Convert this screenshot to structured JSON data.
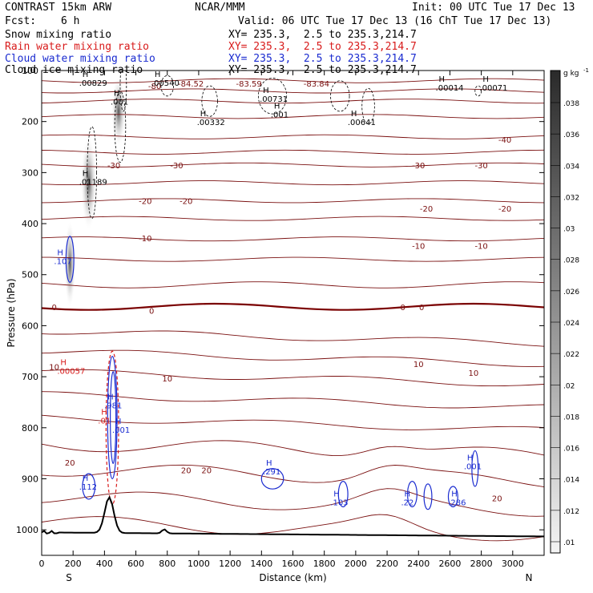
{
  "header": {
    "model": "CONTRAST 15km ARW",
    "org": "NCAR/MMM",
    "init": "Init: 00 UTC Tue 17 Dec 13",
    "fcst_label": "Fcst:",
    "fcst_value": "6 h",
    "valid": "Valid: 06 UTC Tue 17 Dec 13 (16 ChT Tue 17 Dec 13)"
  },
  "fields": [
    {
      "name": "Snow mixing ratio",
      "xy": "XY= 235.3,  2.5 to 235.3,214.7",
      "color": "#000000"
    },
    {
      "name": "Rain water mixing ratio",
      "xy": "XY= 235.3,  2.5 to 235.3,214.7",
      "color": "#d81b1b"
    },
    {
      "name": "Cloud water mixing ratio",
      "xy": "XY= 235.3,  2.5 to 235.3,214.7",
      "color": "#1a2bd0"
    },
    {
      "name": "Cloud ice mixing ratio",
      "xy": "XY= 235.3,  2.5 to 235.3,214.7",
      "color": "#000000"
    }
  ],
  "chart_data": {
    "type": "contour-cross-section",
    "xlabel": "Distance (km)",
    "ylabel": "Pressure (hPa)",
    "xlim": [
      0,
      3200
    ],
    "ylim": [
      1050,
      100
    ],
    "x_ticks": [
      "0",
      "200",
      "400",
      "600",
      "800",
      "1000",
      "1200",
      "1400",
      "1600",
      "1800",
      "2000",
      "2200",
      "2400",
      "2600",
      "2800",
      "3000"
    ],
    "y_ticks": [
      "100",
      "200",
      "300",
      "400",
      "500",
      "600",
      "700",
      "800",
      "900",
      "1000"
    ],
    "x_end_left": "S",
    "x_end_right": "N",
    "colorbar": {
      "unit": "g kg",
      "unit_exp": "-1",
      "labels": [
        ".038",
        ".036",
        ".034",
        ".032",
        ".03",
        ".028",
        ".026",
        ".024",
        ".022",
        ".02",
        ".018",
        ".016",
        ".014",
        ".012",
        ".01"
      ]
    },
    "temperature_labels": [
      {
        "text": "-80",
        "x": 720,
        "p": 130
      },
      {
        "text": "-84.52",
        "x": 950,
        "p": 125
      },
      {
        "text": "-83.59",
        "x": 1320,
        "p": 125
      },
      {
        "text": "-83.84",
        "x": 1750,
        "p": 125
      },
      {
        "text": "-40",
        "x": 2950,
        "p": 235
      },
      {
        "text": "-30",
        "x": 460,
        "p": 285
      },
      {
        "text": "-30",
        "x": 860,
        "p": 285
      },
      {
        "text": "-30",
        "x": 2400,
        "p": 285
      },
      {
        "text": "-30",
        "x": 2800,
        "p": 285
      },
      {
        "text": "-20",
        "x": 660,
        "p": 355
      },
      {
        "text": "-20",
        "x": 920,
        "p": 355
      },
      {
        "text": "-20",
        "x": 2450,
        "p": 370
      },
      {
        "text": "-20",
        "x": 2950,
        "p": 370
      },
      {
        "text": "-10",
        "x": 660,
        "p": 428
      },
      {
        "text": "-10",
        "x": 2400,
        "p": 443
      },
      {
        "text": "-10",
        "x": 2800,
        "p": 443
      },
      {
        "text": "0",
        "x": 80,
        "p": 563
      },
      {
        "text": "0",
        "x": 700,
        "p": 570
      },
      {
        "text": "0",
        "x": 2300,
        "p": 563
      },
      {
        "text": "0",
        "x": 2420,
        "p": 563
      },
      {
        "text": "10",
        "x": 80,
        "p": 680
      },
      {
        "text": "10",
        "x": 800,
        "p": 703
      },
      {
        "text": "10",
        "x": 2400,
        "p": 675
      },
      {
        "text": "10",
        "x": 2750,
        "p": 692
      },
      {
        "text": "20",
        "x": 180,
        "p": 868
      },
      {
        "text": "20",
        "x": 920,
        "p": 883
      },
      {
        "text": "20",
        "x": 1050,
        "p": 883
      },
      {
        "text": "20",
        "x": 2900,
        "p": 938
      }
    ],
    "maxima": [
      {
        "text": ".00829",
        "x": 300,
        "p": 128,
        "color": "#000000"
      },
      {
        "text": ".00540",
        "x": 760,
        "p": 128,
        "color": "#000000"
      },
      {
        "text": ".00731",
        "x": 1450,
        "p": 160,
        "color": "#000000"
      },
      {
        "text": ".00332",
        "x": 1050,
        "p": 205,
        "color": "#000000"
      },
      {
        "text": ".001",
        "x": 500,
        "p": 165,
        "color": "#000000"
      },
      {
        "text": ".001",
        "x": 1520,
        "p": 190,
        "color": "#000000"
      },
      {
        "text": ".00641",
        "x": 2010,
        "p": 205,
        "color": "#000000"
      },
      {
        "text": ".00014",
        "x": 2570,
        "p": 138,
        "color": "#000000"
      },
      {
        "text": ".00071",
        "x": 2850,
        "p": 138,
        "color": "#000000"
      },
      {
        "text": ".01189",
        "x": 300,
        "p": 322,
        "color": "#000000"
      },
      {
        "text": ".107",
        "x": 140,
        "p": 478,
        "color": "#1a2bd0"
      },
      {
        "text": ".00057",
        "x": 160,
        "p": 693,
        "color": "#d81b1b"
      },
      {
        "text": ".981",
        "x": 460,
        "p": 760,
        "color": "#1a2bd0"
      },
      {
        "text": ".001",
        "x": 510,
        "p": 808,
        "color": "#1a2bd0"
      },
      {
        "text": ".01",
        "x": 420,
        "p": 790,
        "color": "#d81b1b"
      },
      {
        "text": ".112",
        "x": 300,
        "p": 920,
        "color": "#1a2bd0"
      },
      {
        "text": ".291",
        "x": 1470,
        "p": 890,
        "color": "#1a2bd0"
      },
      {
        "text": ".103",
        "x": 1900,
        "p": 950,
        "color": "#1a2bd0"
      },
      {
        "text": ".22",
        "x": 2350,
        "p": 950,
        "color": "#1a2bd0"
      },
      {
        "text": ".286",
        "x": 2650,
        "p": 950,
        "color": "#1a2bd0"
      },
      {
        "text": ".001",
        "x": 2750,
        "p": 880,
        "color": "#1a2bd0"
      }
    ],
    "isotherm_color": "#7a1010",
    "freezing_line_color": "#7a0000",
    "snow_color": "#000000",
    "rain_color": "#d81b1b",
    "cloud_water_color": "#1a2bd0",
    "terrain_color": "#000000"
  }
}
